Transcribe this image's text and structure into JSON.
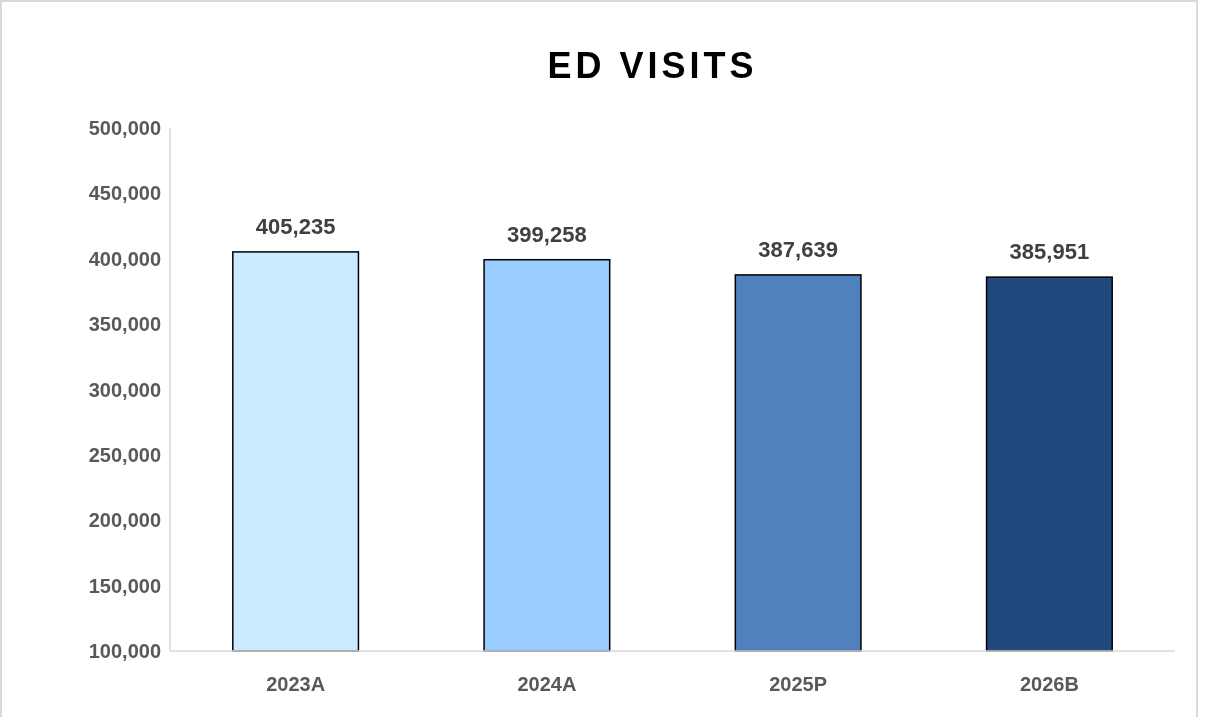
{
  "chart_data": {
    "type": "bar",
    "title": "ED VISITS",
    "categories": [
      "2023A",
      "2024A",
      "2025P",
      "2026B"
    ],
    "values": [
      405235,
      399258,
      387639,
      385951
    ],
    "value_labels": [
      "405,235",
      "399,258",
      "387,639",
      "385,951"
    ],
    "colors": [
      "#cceaff",
      "#99ccff",
      "#4f81bd",
      "#1f497d"
    ],
    "ylim": [
      100000,
      500000
    ],
    "yticks": [
      {
        "value": 100000,
        "label": "100,000"
      },
      {
        "value": 150000,
        "label": "150,000"
      },
      {
        "value": 200000,
        "label": "200,000"
      },
      {
        "value": 250000,
        "label": "250,000"
      },
      {
        "value": 300000,
        "label": "300,000"
      },
      {
        "value": 350000,
        "label": "350,000"
      },
      {
        "value": 400000,
        "label": "400,000"
      },
      {
        "value": 450000,
        "label": "450,000"
      },
      {
        "value": 500000,
        "label": "500,000"
      }
    ],
    "grid": false
  }
}
